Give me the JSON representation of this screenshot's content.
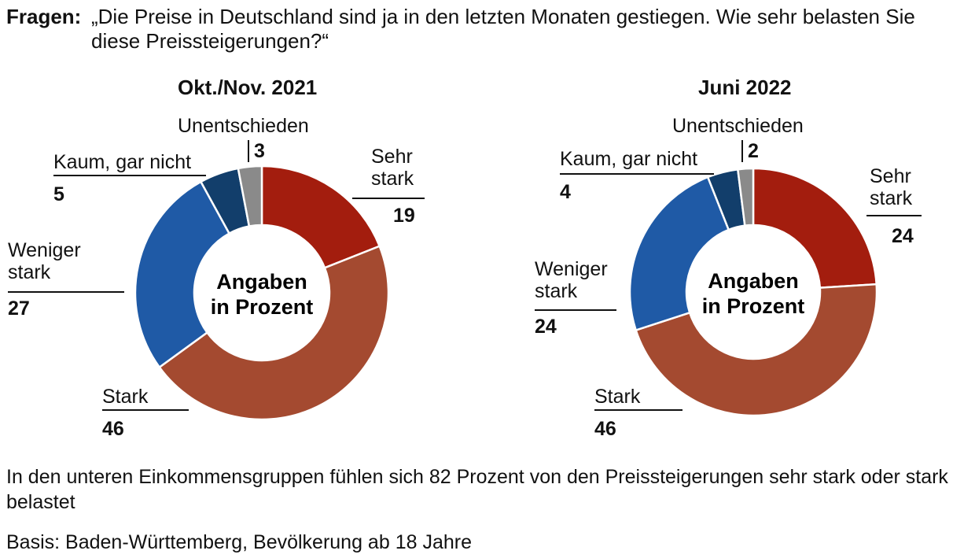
{
  "question": {
    "label": "Fragen:",
    "text": "„Die Preise in Deutschland sind ja in den letzten Monaten gestiegen. Wie sehr belasten Sie diese Preissteigerungen?“"
  },
  "center_label": [
    "Angaben",
    "in Prozent"
  ],
  "chart_data": [
    {
      "type": "pie",
      "donut": true,
      "title": "Okt./Nov. 2021",
      "categories": [
        "Sehr stark",
        "Stark",
        "Weniger stark",
        "Kaum, gar nicht",
        "Unentschieden"
      ],
      "values": [
        19,
        46,
        27,
        5,
        3
      ],
      "colors": [
        "#a31d0e",
        "#a44a30",
        "#1f5aa6",
        "#123e6b",
        "#8a8a8a"
      ],
      "unit": "Prozent",
      "legend": "none"
    },
    {
      "type": "pie",
      "donut": true,
      "title": "Juni 2022",
      "categories": [
        "Sehr stark",
        "Stark",
        "Weniger stark",
        "Kaum, gar nicht",
        "Unentschieden"
      ],
      "values": [
        24,
        46,
        24,
        4,
        2
      ],
      "colors": [
        "#a31d0e",
        "#a44a30",
        "#1f5aa6",
        "#123e6b",
        "#8a8a8a"
      ],
      "unit": "Prozent",
      "legend": "none"
    }
  ],
  "labels": {
    "sehr_stark": [
      "Sehr",
      "stark"
    ],
    "stark": "Stark",
    "weniger_stark": [
      "Weniger",
      "stark"
    ],
    "kaum": "Kaum, gar nicht",
    "unentschieden": "Unentschieden"
  },
  "note": "In den unteren Einkommensgruppen fühlen sich 82 Prozent von den Preissteigerungen sehr stark oder stark belastet",
  "basis": "Basis: Baden-Württemberg, Bevölkerung ab 18 Jahre"
}
